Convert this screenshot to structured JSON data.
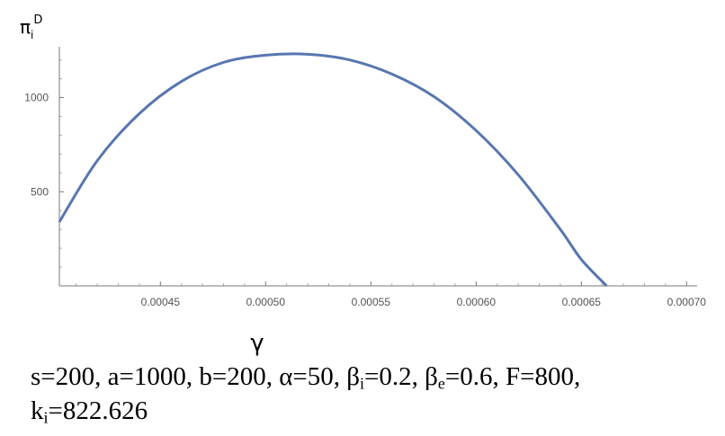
{
  "chart_data": {
    "type": "line",
    "ylabel": {
      "main": "π",
      "sub": "i",
      "sup": "D"
    },
    "xlabel": "γ",
    "xlim": [
      0.000402,
      0.000705
    ],
    "ylim": [
      0,
      1270
    ],
    "x_ticks": [
      0.00045,
      0.0005,
      0.00055,
      0.0006,
      0.00065,
      0.0007
    ],
    "x_tick_labels": [
      "0.00045",
      "0.00050",
      "0.00055",
      "0.00060",
      "0.00065",
      "0.00070"
    ],
    "y_ticks": [
      500,
      1000
    ],
    "y_tick_labels": [
      "500",
      "1000"
    ],
    "grid": false,
    "series": [
      {
        "color": "#5876b0",
        "x": [
          0.000402,
          0.00042,
          0.00044,
          0.00046,
          0.00048,
          0.0005,
          0.00052,
          0.00054,
          0.00056,
          0.00058,
          0.0006,
          0.00062,
          0.00064,
          0.00065,
          0.000662
        ],
        "y": [
          340,
          665,
          915,
          1086,
          1187,
          1225,
          1230,
          1200,
          1125,
          1005,
          825,
          590,
          300,
          140,
          0
        ]
      }
    ]
  },
  "caption": {
    "line1": [
      {
        "t": "s=200, a=1000, b=200, α=50, β"
      },
      {
        "sub": "i"
      },
      {
        "t": "=0.2, β"
      },
      {
        "sub": "e"
      },
      {
        "t": "=0.6, F=800,"
      }
    ],
    "line2": [
      {
        "t": "k"
      },
      {
        "sub": "i"
      },
      {
        "t": "=822.626"
      }
    ]
  }
}
